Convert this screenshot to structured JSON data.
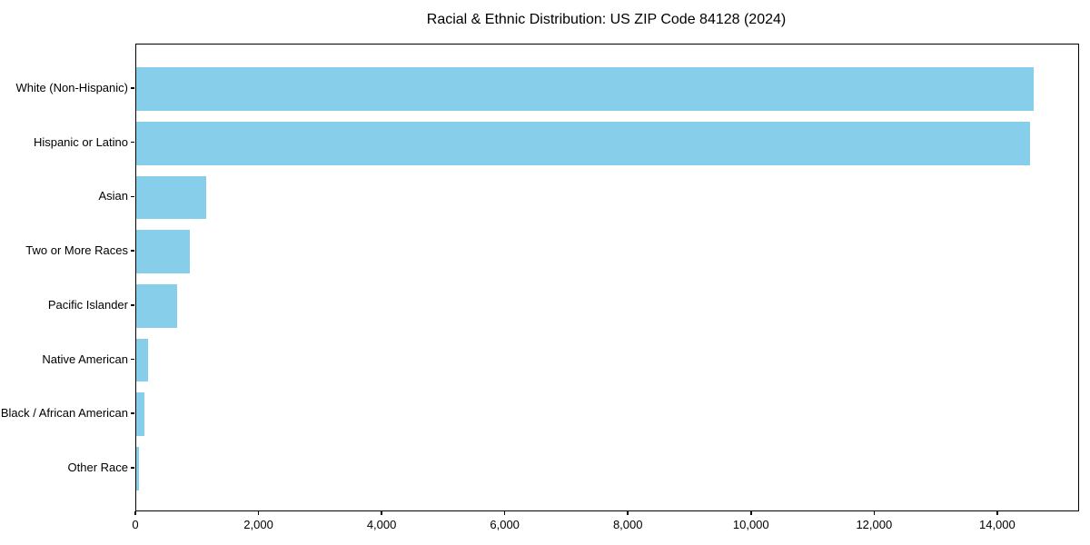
{
  "chart_data": {
    "type": "bar",
    "orientation": "horizontal",
    "title": "Racial & Ethnic Distribution: US ZIP Code 84128 (2024)",
    "categories": [
      "White (Non-Hispanic)",
      "Hispanic or Latino",
      "Asian",
      "Two or More Races",
      "Pacific Islander",
      "Native American",
      "Black / African American",
      "Other Race"
    ],
    "values": [
      14570,
      14525,
      1135,
      870,
      665,
      190,
      135,
      45
    ],
    "xlabel": "",
    "ylabel": "",
    "xlim": [
      0,
      15300
    ],
    "x_tick_values": [
      0,
      2000,
      4000,
      6000,
      8000,
      10000,
      12000,
      14000
    ],
    "x_tick_labels": [
      "0",
      "2,000",
      "4,000",
      "6,000",
      "8,000",
      "10,000",
      "12,000",
      "14,000"
    ],
    "grid": false,
    "legend": "none",
    "bar_color": "#87CEEB",
    "axis_color": "#000000",
    "background_color": "#ffffff"
  }
}
